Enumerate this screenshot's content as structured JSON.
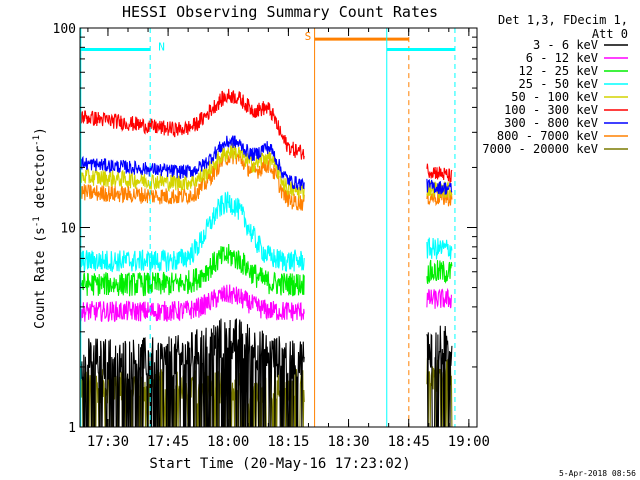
{
  "chart_data": {
    "type": "line",
    "title": "HESSI Observing Summary Count Rates",
    "xlabel": "Start Time (20-May-16 17:23:02)",
    "ylabel_main": "Count Rate (s",
    "ylabel_sup1": "-1",
    "ylabel_mid": " detector",
    "ylabel_sup2": "-1",
    "ylabel_end": ")",
    "ylog": true,
    "ylim": [
      1,
      100
    ],
    "xlim_minutes": [
      0,
      99
    ],
    "x_ticks": [
      {
        "label": "17:30",
        "min": 6.97
      },
      {
        "label": "17:45",
        "min": 21.97
      },
      {
        "label": "18:00",
        "min": 36.97
      },
      {
        "label": "18:15",
        "min": 51.97
      },
      {
        "label": "18:30",
        "min": 66.97
      },
      {
        "label": "18:45",
        "min": 81.97
      },
      {
        "label": "19:00",
        "min": 96.97
      }
    ],
    "y_ticks": [
      {
        "label": "1",
        "value": 1
      },
      {
        "label": "10",
        "value": 10
      },
      {
        "label": "100",
        "value": 100
      }
    ],
    "legend_header": [
      "Det 1,3, FDecim 1,",
      "Att 0"
    ],
    "series": [
      {
        "name": "3 - 6 keV",
        "color": "#000000"
      },
      {
        "name": "6 - 12 keV",
        "color": "#ff00ff"
      },
      {
        "name": "12 - 25 keV",
        "color": "#00ee00"
      },
      {
        "name": "25 - 50 keV",
        "color": "#00ffff"
      },
      {
        "name": "50 - 100 keV",
        "color": "#d4d400"
      },
      {
        "name": "100 - 300 keV",
        "color": "#ff0000"
      },
      {
        "name": "300 - 800 keV",
        "color": "#0000ff"
      },
      {
        "name": "800 - 7000 keV",
        "color": "#ff8000"
      },
      {
        "name": "7000 - 20000 keV",
        "color": "#7a7a00"
      }
    ],
    "flags": [
      {
        "label": "N",
        "color": "#00ffff"
      },
      {
        "label": "S",
        "color": "#ff8000"
      }
    ],
    "timestamp": "5-Apr-2018 08:56"
  }
}
